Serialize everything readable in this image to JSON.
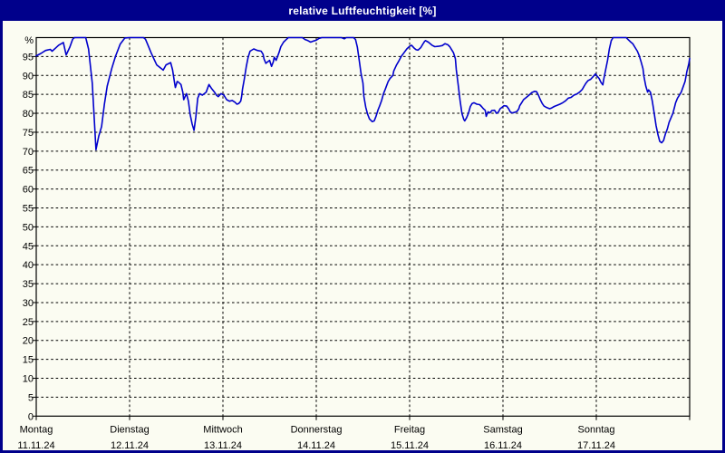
{
  "header": {
    "title": "relative Luftfeuchtigkeit [%]"
  },
  "colors": {
    "titlebar_bg": "#00008B",
    "titlebar_text": "#FFFFFF",
    "window_border": "#00008B",
    "window_bg": "#FBFCF2",
    "grid": "#000000",
    "line": "#0000CC"
  },
  "chart_data": {
    "type": "line",
    "title": "relative Luftfeuchtigkeit [%]",
    "y_axis": {
      "unit": "%",
      "min": 0,
      "max": 100,
      "tick_step": 5,
      "tick_labels": [
        0,
        5,
        10,
        15,
        20,
        25,
        30,
        35,
        40,
        45,
        50,
        55,
        60,
        65,
        70,
        75,
        80,
        85,
        90,
        95
      ],
      "grid": "dashed"
    },
    "x_axis": {
      "span_days": 7,
      "grid": "dashed-at-day-boundaries",
      "days": [
        {
          "name": "Montag",
          "date": "11.11.24"
        },
        {
          "name": "Dienstag",
          "date": "12.11.24"
        },
        {
          "name": "Mittwoch",
          "date": "13.11.24"
        },
        {
          "name": "Donnerstag",
          "date": "14.11.24"
        },
        {
          "name": "Freitag",
          "date": "15.11.24"
        },
        {
          "name": "Samstag",
          "date": "16.11.24"
        },
        {
          "name": "Sonntag",
          "date": "17.11.24"
        }
      ]
    },
    "series": [
      {
        "name": "relative Luftfeuchtigkeit",
        "unit": "%",
        "color": "#0000CC",
        "points_day_value": [
          [
            0.0,
            95.2
          ],
          [
            0.05,
            95.8
          ],
          [
            0.1,
            96.6
          ],
          [
            0.15,
            96.9
          ],
          [
            0.17,
            96.4
          ],
          [
            0.21,
            97.3
          ],
          [
            0.24,
            98.0
          ],
          [
            0.29,
            98.7
          ],
          [
            0.32,
            95.4
          ],
          [
            0.36,
            97.5
          ],
          [
            0.39,
            99.6
          ],
          [
            0.41,
            100
          ],
          [
            0.53,
            100
          ],
          [
            0.56,
            97.0
          ],
          [
            0.6,
            88.0
          ],
          [
            0.62,
            79.0
          ],
          [
            0.64,
            70.4
          ],
          [
            0.67,
            74.0
          ],
          [
            0.7,
            76.5
          ],
          [
            0.73,
            82.4
          ],
          [
            0.76,
            87.2
          ],
          [
            0.81,
            91.9
          ],
          [
            0.85,
            95.1
          ],
          [
            0.9,
            98.3
          ],
          [
            0.95,
            99.9
          ],
          [
            1.0,
            100
          ],
          [
            1.15,
            100
          ],
          [
            1.17,
            99.6
          ],
          [
            1.19,
            98.4
          ],
          [
            1.23,
            96.0
          ],
          [
            1.26,
            94.4
          ],
          [
            1.29,
            92.8
          ],
          [
            1.33,
            92.0
          ],
          [
            1.36,
            91.4
          ],
          [
            1.39,
            92.8
          ],
          [
            1.44,
            93.4
          ],
          [
            1.46,
            91.5
          ],
          [
            1.48,
            88.4
          ],
          [
            1.49,
            86.8
          ],
          [
            1.51,
            88.4
          ],
          [
            1.52,
            88.3
          ],
          [
            1.55,
            87.6
          ],
          [
            1.57,
            85.6
          ],
          [
            1.58,
            83.6
          ],
          [
            1.61,
            85.2
          ],
          [
            1.63,
            83.2
          ],
          [
            1.65,
            79.6
          ],
          [
            1.67,
            77.2
          ],
          [
            1.69,
            75.5
          ],
          [
            1.71,
            79.0
          ],
          [
            1.73,
            84.0
          ],
          [
            1.75,
            85.2
          ],
          [
            1.78,
            84.8
          ],
          [
            1.82,
            85.6
          ],
          [
            1.84,
            86.9
          ],
          [
            1.85,
            87.6
          ],
          [
            1.88,
            86.5
          ],
          [
            1.91,
            85.6
          ],
          [
            1.93,
            84.8
          ],
          [
            1.95,
            84.4
          ],
          [
            1.98,
            85.2
          ],
          [
            2.01,
            84.8
          ],
          [
            2.04,
            83.6
          ],
          [
            2.07,
            83.2
          ],
          [
            2.1,
            83.4
          ],
          [
            2.13,
            82.9
          ],
          [
            2.15,
            82.4
          ],
          [
            2.17,
            82.6
          ],
          [
            2.19,
            83.2
          ],
          [
            2.2,
            84.4
          ],
          [
            2.21,
            86.4
          ],
          [
            2.23,
            89.2
          ],
          [
            2.25,
            92.4
          ],
          [
            2.27,
            94.8
          ],
          [
            2.29,
            96.4
          ],
          [
            2.33,
            97.0
          ],
          [
            2.37,
            96.6
          ],
          [
            2.41,
            96.4
          ],
          [
            2.43,
            95.6
          ],
          [
            2.44,
            94.4
          ],
          [
            2.46,
            93.2
          ],
          [
            2.48,
            93.6
          ],
          [
            2.5,
            94.0
          ],
          [
            2.52,
            92.4
          ],
          [
            2.54,
            93.6
          ],
          [
            2.55,
            94.8
          ],
          [
            2.57,
            94.0
          ],
          [
            2.6,
            96.0
          ],
          [
            2.62,
            97.6
          ],
          [
            2.65,
            98.8
          ],
          [
            2.67,
            99.3
          ],
          [
            2.7,
            100
          ],
          [
            2.85,
            100
          ],
          [
            2.88,
            99.5
          ],
          [
            2.91,
            99.2
          ],
          [
            2.94,
            98.8
          ],
          [
            2.97,
            99.1
          ],
          [
            3.0,
            99.3
          ],
          [
            3.03,
            99.8
          ],
          [
            3.06,
            100
          ],
          [
            3.27,
            100
          ],
          [
            3.3,
            99.7
          ],
          [
            3.32,
            100
          ],
          [
            3.4,
            100
          ],
          [
            3.42,
            99.5
          ],
          [
            3.44,
            97.5
          ],
          [
            3.46,
            94.0
          ],
          [
            3.48,
            90.5
          ],
          [
            3.5,
            88.0
          ],
          [
            3.51,
            84.5
          ],
          [
            3.53,
            81.6
          ],
          [
            3.55,
            79.8
          ],
          [
            3.57,
            78.5
          ],
          [
            3.6,
            77.8
          ],
          [
            3.62,
            78.0
          ],
          [
            3.64,
            79.2
          ],
          [
            3.66,
            80.8
          ],
          [
            3.68,
            82.0
          ],
          [
            3.7,
            83.4
          ],
          [
            3.72,
            85.2
          ],
          [
            3.74,
            86.4
          ],
          [
            3.77,
            88.4
          ],
          [
            3.79,
            89.2
          ],
          [
            3.82,
            90.0
          ],
          [
            3.83,
            91.2
          ],
          [
            3.86,
            92.8
          ],
          [
            3.88,
            93.6
          ],
          [
            3.91,
            95.0
          ],
          [
            3.94,
            96.0
          ],
          [
            3.97,
            97.0
          ],
          [
            4.0,
            97.7
          ],
          [
            4.02,
            98.0
          ],
          [
            4.05,
            97.2
          ],
          [
            4.07,
            96.8
          ],
          [
            4.09,
            96.7
          ],
          [
            4.12,
            97.4
          ],
          [
            4.14,
            98.2
          ],
          [
            4.16,
            99.0
          ],
          [
            4.17,
            99.2
          ],
          [
            4.2,
            98.8
          ],
          [
            4.24,
            98.0
          ],
          [
            4.27,
            97.6
          ],
          [
            4.31,
            97.7
          ],
          [
            4.35,
            97.9
          ],
          [
            4.38,
            98.4
          ],
          [
            4.41,
            98.1
          ],
          [
            4.43,
            97.6
          ],
          [
            4.45,
            96.8
          ],
          [
            4.47,
            96.0
          ],
          [
            4.49,
            94.4
          ],
          [
            4.5,
            91.5
          ],
          [
            4.52,
            87.5
          ],
          [
            4.54,
            83.5
          ],
          [
            4.56,
            80.0
          ],
          [
            4.58,
            78.4
          ],
          [
            4.59,
            78.0
          ],
          [
            4.61,
            78.8
          ],
          [
            4.63,
            80.0
          ],
          [
            4.65,
            81.8
          ],
          [
            4.67,
            82.6
          ],
          [
            4.69,
            82.8
          ],
          [
            4.72,
            82.4
          ],
          [
            4.75,
            82.3
          ],
          [
            4.77,
            81.8
          ],
          [
            4.79,
            81.2
          ],
          [
            4.81,
            80.8
          ],
          [
            4.82,
            79.2
          ],
          [
            4.84,
            80.4
          ],
          [
            4.86,
            80.1
          ],
          [
            4.88,
            80.7
          ],
          [
            4.91,
            80.8
          ],
          [
            4.93,
            80.0
          ],
          [
            4.95,
            80.3
          ],
          [
            4.97,
            81.2
          ],
          [
            4.99,
            81.6
          ],
          [
            5.01,
            82.0
          ],
          [
            5.04,
            81.9
          ],
          [
            5.06,
            81.2
          ],
          [
            5.08,
            80.3
          ],
          [
            5.1,
            80.1
          ],
          [
            5.13,
            80.3
          ],
          [
            5.15,
            80.5
          ],
          [
            5.17,
            81.2
          ],
          [
            5.18,
            82.0
          ],
          [
            5.2,
            82.8
          ],
          [
            5.22,
            83.6
          ],
          [
            5.25,
            84.2
          ],
          [
            5.28,
            84.8
          ],
          [
            5.31,
            85.5
          ],
          [
            5.34,
            85.8
          ],
          [
            5.36,
            85.7
          ],
          [
            5.38,
            84.8
          ],
          [
            5.4,
            83.6
          ],
          [
            5.42,
            82.6
          ],
          [
            5.44,
            81.9
          ],
          [
            5.47,
            81.5
          ],
          [
            5.5,
            81.2
          ],
          [
            5.52,
            81.4
          ],
          [
            5.55,
            81.8
          ],
          [
            5.58,
            82.1
          ],
          [
            5.61,
            82.4
          ],
          [
            5.64,
            82.8
          ],
          [
            5.67,
            83.3
          ],
          [
            5.7,
            84.0
          ],
          [
            5.73,
            84.2
          ],
          [
            5.76,
            84.8
          ],
          [
            5.79,
            85.1
          ],
          [
            5.82,
            85.6
          ],
          [
            5.85,
            86.3
          ],
          [
            5.87,
            87.2
          ],
          [
            5.89,
            88.0
          ],
          [
            5.91,
            88.6
          ],
          [
            5.94,
            89.0
          ],
          [
            5.97,
            89.8
          ],
          [
            5.99,
            90.4
          ],
          [
            6.01,
            89.8
          ],
          [
            6.03,
            89.2
          ],
          [
            6.05,
            88.2
          ],
          [
            6.07,
            87.5
          ],
          [
            6.08,
            89.0
          ],
          [
            6.1,
            91.5
          ],
          [
            6.12,
            94.0
          ],
          [
            6.14,
            97.0
          ],
          [
            6.16,
            99.2
          ],
          [
            6.18,
            100
          ],
          [
            6.32,
            100
          ],
          [
            6.34,
            99.5
          ],
          [
            6.37,
            98.8
          ],
          [
            6.39,
            98.4
          ],
          [
            6.41,
            97.6
          ],
          [
            6.44,
            96.4
          ],
          [
            6.46,
            95.2
          ],
          [
            6.48,
            93.6
          ],
          [
            6.5,
            91.8
          ],
          [
            6.51,
            89.8
          ],
          [
            6.53,
            87.2
          ],
          [
            6.55,
            85.6
          ],
          [
            6.56,
            86.2
          ],
          [
            6.58,
            85.6
          ],
          [
            6.6,
            83.2
          ],
          [
            6.62,
            80.0
          ],
          [
            6.64,
            76.8
          ],
          [
            6.66,
            74.4
          ],
          [
            6.68,
            72.6
          ],
          [
            6.7,
            72.2
          ],
          [
            6.72,
            72.8
          ],
          [
            6.74,
            74.5
          ],
          [
            6.76,
            75.8
          ],
          [
            6.78,
            77.6
          ],
          [
            6.8,
            78.8
          ],
          [
            6.82,
            80.0
          ],
          [
            6.84,
            81.8
          ],
          [
            6.85,
            82.8
          ],
          [
            6.87,
            84.0
          ],
          [
            6.89,
            84.8
          ],
          [
            6.91,
            85.6
          ],
          [
            6.93,
            87.0
          ],
          [
            6.95,
            88.4
          ],
          [
            6.97,
            91.0
          ],
          [
            6.99,
            93.0
          ],
          [
            7.0,
            94.5
          ]
        ]
      }
    ]
  }
}
